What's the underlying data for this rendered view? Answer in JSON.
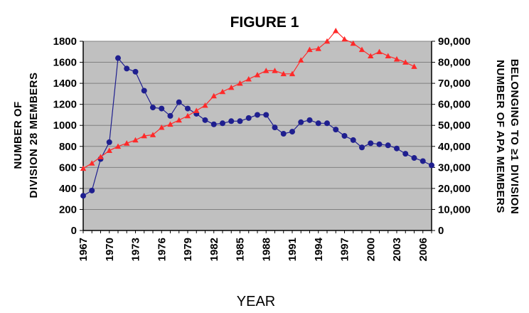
{
  "chart_data": {
    "type": "line",
    "title": "FIGURE 1",
    "xlabel": "YEAR",
    "ylabel_left": [
      "NUMBER OF",
      "DIVISION 28 MEMBERS"
    ],
    "ylabel_right": [
      "NUMBER OF APA MEMBERS",
      "BELONGING TO ≥1 DIVISION"
    ],
    "xlim": [
      1967,
      2007
    ],
    "ylim_left": [
      0,
      1800
    ],
    "ylim_right": [
      0,
      90000
    ],
    "x_tick_labels": [
      "1967",
      "1970",
      "1973",
      "1976",
      "1979",
      "1982",
      "1985",
      "1988",
      "1991",
      "1994",
      "1997",
      "2000",
      "2003",
      "2006"
    ],
    "y_left_tick_labels": [
      "0",
      "200",
      "400",
      "600",
      "800",
      "1000",
      "1200",
      "1400",
      "1600",
      "1800"
    ],
    "y_right_tick_labels": [
      "0",
      "10,000",
      "20,000",
      "30,000",
      "40,000",
      "50,000",
      "60,000",
      "70,000",
      "80,000",
      "90,000"
    ],
    "grid": true,
    "plot_background": "#c0c0c0",
    "series": [
      {
        "axis": "left",
        "color": "#1f1f8f",
        "marker": "circle",
        "x": [
          1967,
          1968,
          1969,
          1970,
          1971,
          1972,
          1973,
          1974,
          1975,
          1976,
          1977,
          1978,
          1979,
          1980,
          1981,
          1982,
          1983,
          1984,
          1985,
          1986,
          1987,
          1988,
          1989,
          1990,
          1991,
          1992,
          1993,
          1994,
          1995,
          1996,
          1997,
          1998,
          1999,
          2000,
          2001,
          2002,
          2003,
          2004,
          2005,
          2006,
          2007
        ],
        "values": [
          330,
          380,
          680,
          840,
          1640,
          1540,
          1510,
          1330,
          1170,
          1160,
          1090,
          1220,
          1160,
          1110,
          1050,
          1010,
          1020,
          1040,
          1040,
          1070,
          1100,
          1100,
          980,
          920,
          940,
          1030,
          1050,
          1020,
          1020,
          960,
          900,
          860,
          790,
          830,
          820,
          810,
          780,
          730,
          690,
          660,
          620
        ]
      },
      {
        "axis": "right",
        "color": "#ff2a2a",
        "marker": "triangle",
        "x": [
          1967,
          1968,
          1969,
          1970,
          1971,
          1972,
          1973,
          1974,
          1975,
          1976,
          1977,
          1978,
          1979,
          1980,
          1981,
          1982,
          1983,
          1984,
          1985,
          1986,
          1987,
          1988,
          1989,
          1990,
          1991,
          1992,
          1993,
          1994,
          1995,
          1996,
          1997,
          1998,
          1999,
          2000,
          2001,
          2002,
          2003,
          2004,
          2005
        ],
        "values": [
          29500,
          32000,
          35000,
          38000,
          40000,
          41500,
          43000,
          45000,
          45500,
          49000,
          50500,
          52500,
          54500,
          57000,
          59500,
          64000,
          66000,
          68000,
          70000,
          72000,
          74000,
          76000,
          76000,
          74500,
          74500,
          81000,
          86000,
          86500,
          90000,
          95000,
          91000,
          89000,
          86000,
          83000,
          85000,
          83000,
          81500,
          80000,
          78000
        ]
      }
    ]
  }
}
